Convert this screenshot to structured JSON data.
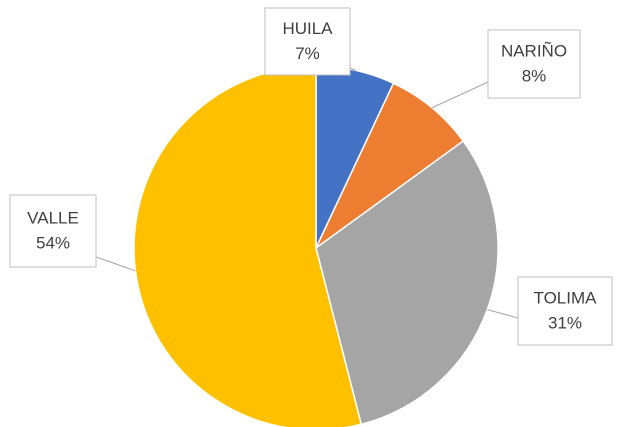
{
  "chart_data": {
    "type": "pie",
    "categories": [
      "HUILA",
      "NARIÑO",
      "TOLIMA",
      "VALLE"
    ],
    "values": [
      7,
      8,
      31,
      54
    ],
    "value_labels": [
      "7%",
      "8%",
      "31%",
      "54%"
    ],
    "colors": [
      "#4472c4",
      "#ed7d31",
      "#a5a5a5",
      "#ffc000"
    ]
  }
}
